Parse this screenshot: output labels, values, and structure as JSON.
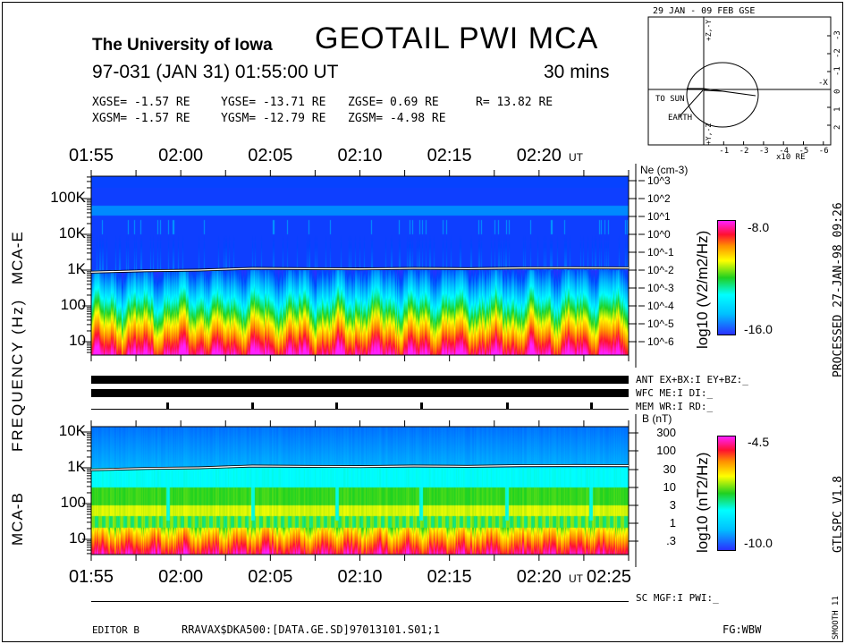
{
  "header": {
    "institution": "The University of Iowa",
    "title": "GEOTAIL  PWI  MCA",
    "date_line": "97-031 (JAN 31) 01:55:00 UT",
    "duration": "30 mins",
    "gse": {
      "x": "XGSE=  -1.57 RE",
      "y": "YGSE= -13.71 RE",
      "z": "ZGSE=   0.69 RE",
      "r": "R= 13.82 RE"
    },
    "gsm": {
      "x": "XGSM=  -1.57 RE",
      "y": "YGSM= -12.79 RE",
      "z": "ZGSM=  -4.98 RE"
    }
  },
  "orbit": {
    "title": "29 JAN - 09 FEB  GSE",
    "to_sun": "TO SUN",
    "earth": "EARTH",
    "x_unit": "x10 RE",
    "x_ticks": [
      "-1",
      "-2",
      "-3",
      "-4",
      "-5",
      "-6"
    ],
    "y_ticks": [
      "-3",
      "-2",
      "-1",
      "0",
      "1",
      "2"
    ],
    "axis_x": "-X",
    "axis_top": "+Z,-Y",
    "axis_bottom": "+Y,-Z"
  },
  "axes": {
    "time_ticks": [
      "01:55",
      "02:00",
      "02:05",
      "02:10",
      "02:15",
      "02:20"
    ],
    "time_end": "02:25",
    "ut": "UT",
    "ylabel_common": "FREQUENCY (Hz)",
    "mca_e": "MCA-E",
    "mca_b": "MCA-B",
    "e_freq_ticks": [
      "100K",
      "10K",
      "1K",
      "100",
      "10"
    ],
    "b_freq_ticks": [
      "10K",
      "1K",
      "100",
      "10"
    ],
    "ne_label": "Ne (cm-3)",
    "ne_ticks": [
      "10^3",
      "10^2",
      "10^1",
      "10^0",
      "10^-1",
      "10^-2",
      "10^-3",
      "10^-4",
      "10^-5",
      "10^-6"
    ],
    "b_label": "B (nT)",
    "b_ticks": [
      "300",
      "100",
      "30",
      "10",
      "3",
      "1",
      ".3"
    ]
  },
  "colorbars": {
    "e": {
      "unit": "log10 (V2/m2/Hz)",
      "max": "-8.0",
      "min": "-16.0"
    },
    "b": {
      "unit": "log10 (nT2/Hz)",
      "max": "-4.5",
      "min": "-10.0"
    }
  },
  "status": {
    "ant": "ANT EX+BX:I EY+BZ:_",
    "wfc": "WFC ME:I     DI:_",
    "mem": "MEM WR:I     RD:_",
    "sc": "SC MGF:I   PWI:_"
  },
  "side": {
    "processed": "PROCESSED 27-JAN-98  09:26",
    "version": "GTLSPC   V1.8",
    "smooth": "SMOOTH 11"
  },
  "footer": {
    "editor": "EDITOR B",
    "path": "RRAVAX$DKA500:[DATA.GE.SD]97013101.S01;1",
    "fg": "FG:WBW"
  },
  "chart_data": [
    {
      "type": "heatmap",
      "name": "MCA-E",
      "x_range": [
        "01:55",
        "02:25"
      ],
      "y_scale": "log",
      "y_unit": "Hz",
      "ylim": [
        3,
        400000
      ],
      "colorscale": {
        "label": "log10 (V2/m2/Hz)",
        "range": [
          -16.0,
          -8.0
        ]
      },
      "right_axis": {
        "label": "Ne (cm-3)",
        "range": [
          1e-06,
          1000.0
        ],
        "scale": "log"
      },
      "overlay_line": {
        "x_min": [
          0,
          3,
          6,
          9,
          12,
          15,
          18,
          21,
          24,
          27,
          30
        ],
        "y_hz": [
          880,
          960,
          1000,
          1120,
          1100,
          1080,
          1120,
          1100,
          1150,
          1160,
          1150
        ],
        "color": "#ffffff"
      }
    },
    {
      "type": "heatmap",
      "name": "MCA-B",
      "x_range": [
        "01:55",
        "02:25"
      ],
      "y_scale": "log",
      "y_unit": "Hz",
      "ylim": [
        4,
        15000
      ],
      "colorscale": {
        "label": "log10 (nT2/Hz)",
        "range": [
          -10.0,
          -4.5
        ]
      },
      "right_axis": {
        "label": "B (nT)",
        "range": [
          0.3,
          300
        ],
        "scale": "log"
      },
      "overlay_line": {
        "x_min": [
          0,
          3,
          6,
          9,
          12,
          15,
          18,
          21,
          24,
          27,
          30
        ],
        "y_hz": [
          880,
          960,
          1000,
          1120,
          1100,
          1080,
          1120,
          1100,
          1150,
          1160,
          1150
        ],
        "color": "#ffffff"
      }
    }
  ],
  "mem_marks_min": [
    4.25,
    9,
    13.7,
    18.4,
    23.2,
    27.9
  ]
}
